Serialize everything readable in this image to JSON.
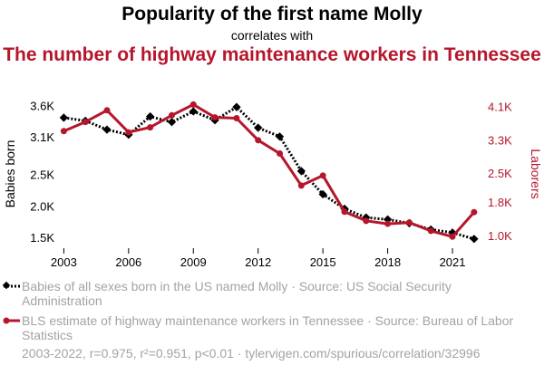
{
  "header": {
    "title": "Popularity of the first name Molly",
    "subtitle": "correlates with",
    "title2": "The number of highway maintenance workers in Tennessee"
  },
  "chart_data": {
    "type": "line",
    "x": [
      2003,
      2004,
      2005,
      2006,
      2007,
      2008,
      2009,
      2010,
      2011,
      2012,
      2013,
      2014,
      2015,
      2016,
      2017,
      2018,
      2019,
      2020,
      2021,
      2022
    ],
    "xlim": [
      2002.9,
      2022.3
    ],
    "xticks": [
      2003,
      2006,
      2009,
      2012,
      2015,
      2018,
      2021
    ],
    "xtick_labels": [
      "2003",
      "2006",
      "2009",
      "2012",
      "2015",
      "2018",
      "2021"
    ],
    "series": [
      {
        "name": "Babies of all sexes born in the US named Molly",
        "axis": "left",
        "color": "#000000",
        "style": "dotted",
        "marker": "diamond",
        "values": [
          3420,
          3370,
          3230,
          3150,
          3440,
          3350,
          3520,
          3380,
          3590,
          3260,
          3120,
          2570,
          2200,
          1970,
          1830,
          1800,
          1740,
          1640,
          1590,
          1490
        ]
      },
      {
        "name": "BLS estimate of highway maintenance workers in Tennessee",
        "axis": "right",
        "color": "#b5162b",
        "style": "solid",
        "marker": "circle",
        "values": [
          3530,
          3750,
          4030,
          3500,
          3620,
          3910,
          4170,
          3860,
          3840,
          3310,
          2990,
          2220,
          2460,
          1590,
          1370,
          1300,
          1330,
          1130,
          990,
          1580
        ]
      }
    ],
    "ylabel_left": "Babies born",
    "ylabel_right": "Laborers",
    "ylim_left": [
      1400,
      3650
    ],
    "yticks_left": [
      1500,
      2000,
      2500,
      3100,
      3600
    ],
    "ytick_labels_left": [
      "1.5K",
      "2.0K",
      "2.5K",
      "3.1K",
      "3.6K"
    ],
    "ylim_right": [
      800,
      4200
    ],
    "yticks_right": [
      1000,
      1800,
      2500,
      3300,
      4100
    ],
    "ytick_labels_right": [
      "1.0K",
      "1.8K",
      "2.5K",
      "3.3K",
      "4.1K"
    ],
    "grid": false
  },
  "legend": {
    "items": [
      {
        "text": "Babies of all sexes born in the US named Molly · Source: US Social Security Administration",
        "color": "#000000"
      },
      {
        "text": "BLS estimate of highway maintenance workers in Tennessee · Source: Bureau of Labor Statistics",
        "color": "#b5162b"
      }
    ]
  },
  "footer": {
    "text": "2003-2022, r=0.975, r²=0.951, p<0.01 · tylervigen.com/spurious/correlation/32996"
  }
}
